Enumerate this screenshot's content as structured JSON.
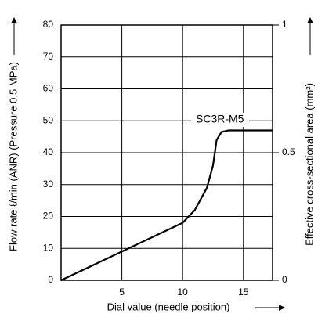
{
  "chart_data": {
    "type": "line",
    "x": [
      0,
      10,
      11,
      12,
      12.5,
      12.8,
      13.2,
      13.8,
      17.4
    ],
    "series": [
      {
        "color": "#000000",
        "values": [
          0,
          18,
          22,
          29,
          36,
          44,
          46.5,
          47,
          47
        ]
      }
    ],
    "xlabel": "Dial value (needle position)",
    "ylabel": "Flow rate ℓ/min (ANR) (Pressure 0.5 MPa)",
    "y2label": "Effective cross-sectional area (mm²)",
    "annotation": "SC3R-M5",
    "xlim": [
      0,
      17.4
    ],
    "xticks": [
      5,
      10,
      15
    ],
    "ylim": [
      0,
      80
    ],
    "yticks": [
      0,
      10,
      20,
      30,
      40,
      50,
      60,
      70,
      80
    ],
    "y2lim": [
      0,
      1
    ],
    "y2ticks": [
      0,
      0.5,
      1
    ],
    "grid": true
  }
}
